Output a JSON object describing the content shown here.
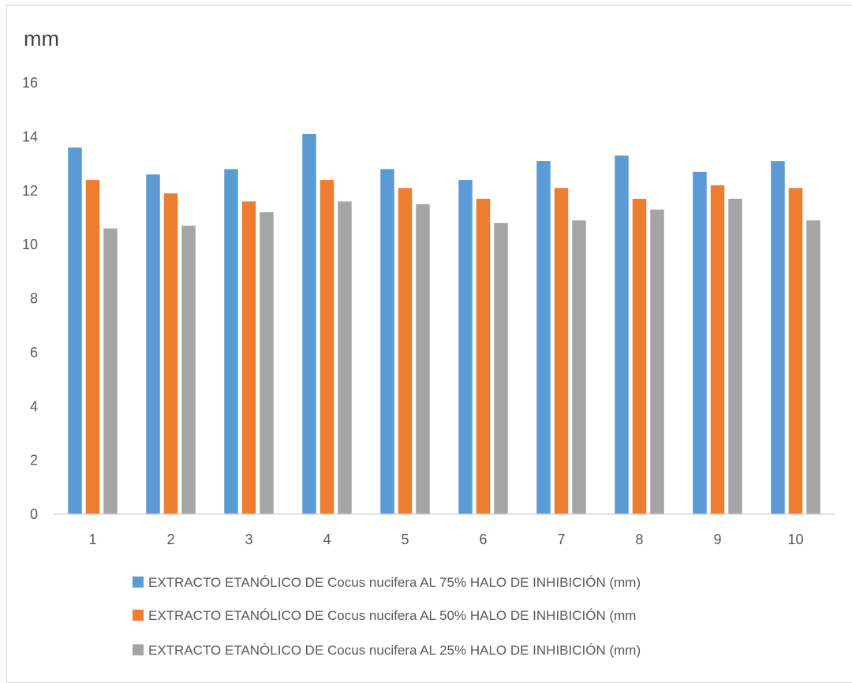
{
  "chart_data": {
    "type": "bar",
    "ylabel": "mm",
    "ylim": [
      0,
      16
    ],
    "y_ticks": [
      0,
      2,
      4,
      6,
      8,
      10,
      12,
      14,
      16
    ],
    "categories": [
      "1",
      "2",
      "3",
      "4",
      "5",
      "6",
      "7",
      "8",
      "9",
      "10"
    ],
    "grid": false,
    "legend_position": "bottom",
    "series": [
      {
        "name": "EXTRACTO ETANÓLICO DE Cocus nucifera  AL 75% HALO DE INHIBICIÓN (mm)",
        "color": "#5b9bd5",
        "values": [
          13.6,
          12.6,
          12.8,
          14.1,
          12.8,
          12.4,
          13.1,
          13.3,
          12.7,
          13.1
        ]
      },
      {
        "name": "EXTRACTO ETANÓLICO DE Cocus nucifera  AL 50% HALO DE INHIBICIÓN (mm",
        "color": "#ed7d31",
        "values": [
          12.4,
          11.9,
          11.6,
          12.4,
          12.1,
          11.7,
          12.1,
          11.7,
          12.2,
          12.1
        ]
      },
      {
        "name": "EXTRACTO ETANÓLICO DE Cocus nucifera  AL 25% HALO DE INHIBICIÓN (mm)",
        "color": "#a5a5a5",
        "values": [
          10.6,
          10.7,
          11.2,
          11.6,
          11.5,
          10.8,
          10.9,
          11.3,
          11.7,
          10.9
        ]
      }
    ]
  }
}
